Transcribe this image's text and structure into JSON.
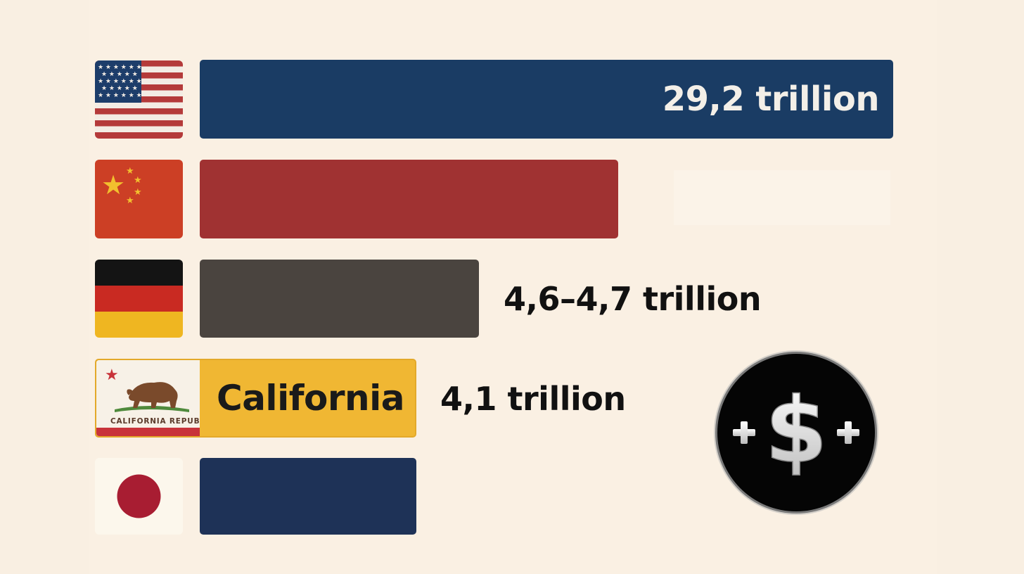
{
  "chart_data": {
    "type": "bar",
    "orientation": "horizontal",
    "categories": [
      "United States",
      "China",
      "Germany",
      "California",
      "Japan"
    ],
    "values": [
      29.2,
      18.7,
      4.65,
      4.1,
      4.1
    ],
    "value_labels": [
      "29,2 trillion",
      "",
      "4,6–4,7 trillion",
      "4,1 trillion",
      ""
    ],
    "inline_labels": [
      "",
      "",
      "",
      "California",
      ""
    ],
    "flag_texts": [
      "",
      "",
      "",
      "CALIFORNIA REPUBLIC",
      ""
    ],
    "colors": [
      "#1a3c64",
      "#a03232",
      "#4a443f",
      "#f0b733",
      "#1e3257"
    ],
    "xlim": [
      0,
      29.2
    ],
    "title": "",
    "xlabel": "",
    "ylabel": ""
  },
  "icons": {
    "coin": "plus-dollar-plus-coin-icon"
  },
  "colors": {
    "background": "#f9efe2"
  }
}
